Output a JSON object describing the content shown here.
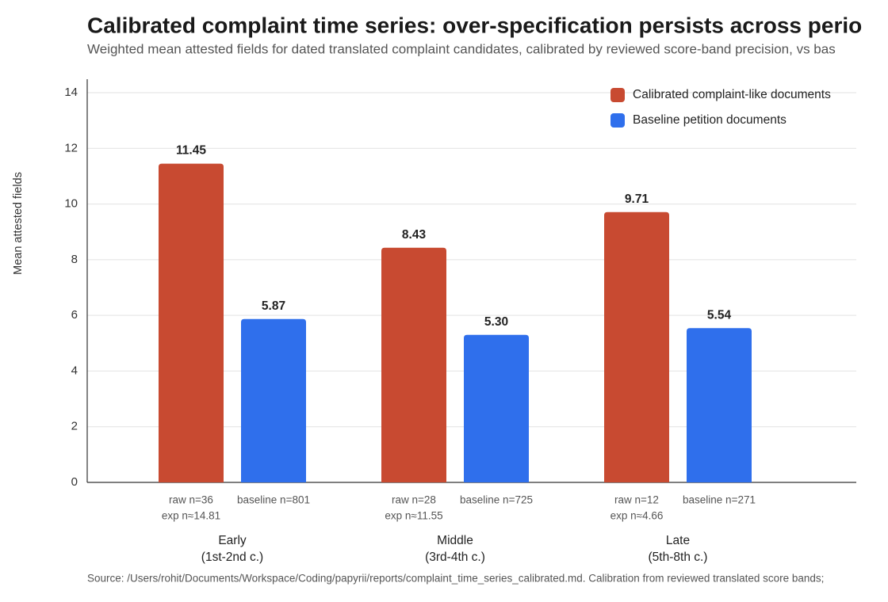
{
  "chart_data": {
    "type": "bar",
    "title": "Calibrated complaint time series: over-specification persists across perio",
    "subtitle": "Weighted mean attested fields for dated translated complaint candidates, calibrated by reviewed score-band precision, vs bas",
    "y_label": "Mean attested fields",
    "source": "Source: /Users/rohit/Documents/Workspace/Coding/papyrii/reports/complaint_time_series_calibrated.md. Calibration from reviewed translated score bands;",
    "categories": [
      "Early",
      "Middle",
      "Late"
    ],
    "category_sublabels": [
      "(1st-2nd c.)",
      "(3rd-4th c.)",
      "(5th-8th c.)"
    ],
    "series": [
      {
        "name": "Calibrated complaint-like documents",
        "color": "#c84a31",
        "values": [
          11.45,
          8.43,
          9.71
        ],
        "value_labels": [
          "11.45",
          "8.43",
          "9.71"
        ],
        "notes": [
          [
            "raw n=36",
            "exp n≈14.81"
          ],
          [
            "raw n=28",
            "exp n≈11.55"
          ],
          [
            "raw n=12",
            "exp n≈4.66"
          ]
        ]
      },
      {
        "name": "Baseline petition documents",
        "color": "#2f6fec",
        "values": [
          5.87,
          5.3,
          5.54
        ],
        "value_labels": [
          "5.87",
          "5.30",
          "5.54"
        ],
        "notes": [
          [
            "baseline n=801"
          ],
          [
            "baseline n=725"
          ],
          [
            "baseline n=271"
          ]
        ]
      }
    ],
    "ylim": [
      0,
      14
    ],
    "yticks": [
      0,
      2,
      4,
      6,
      8,
      10,
      12,
      14
    ],
    "grid": true,
    "legend": "top-right"
  }
}
